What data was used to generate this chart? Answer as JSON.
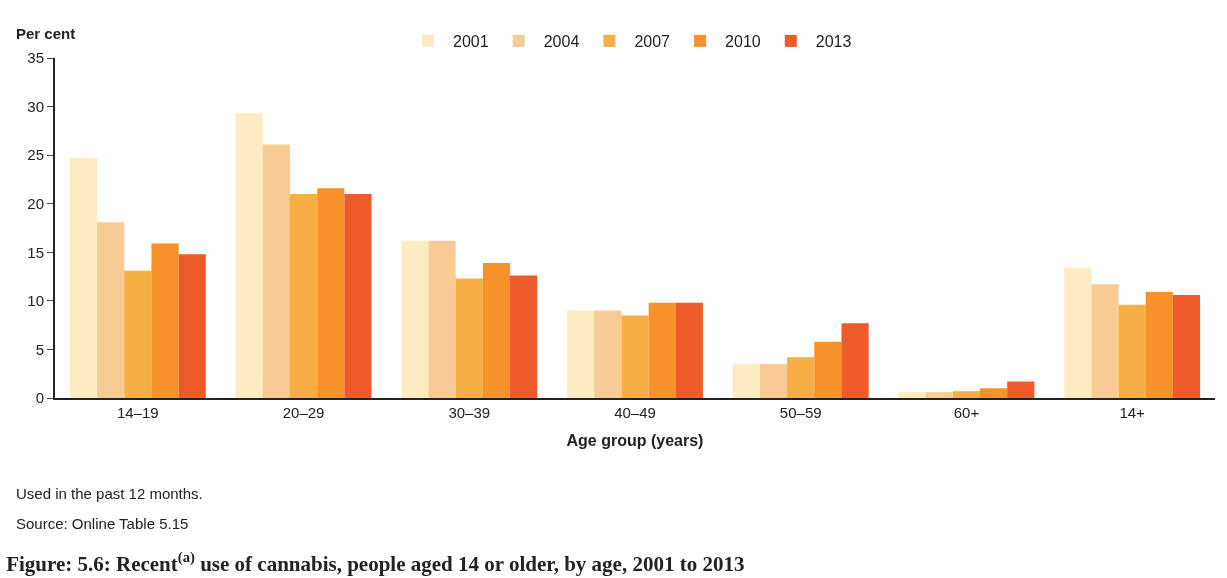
{
  "chart_data": {
    "type": "bar",
    "title": "Figure: 5.6: Recent$^{(a)}$ use of cannabis, people aged 14 or older, by age, 2001 to 2013",
    "xlabel": "Age group (years)",
    "ylabel": "Per cent",
    "categories": [
      "14–19",
      "20–29",
      "30–39",
      "40–49",
      "50–59",
      "60+",
      "14+"
    ],
    "series": [
      {
        "name": "2001",
        "color": "#fdebc2",
        "values": [
          24.7,
          29.3,
          16.2,
          9.0,
          3.5,
          0.6,
          13.4
        ]
      },
      {
        "name": "2004",
        "color": "#f7cb93",
        "values": [
          18.1,
          26.1,
          16.2,
          9.0,
          3.5,
          0.6,
          11.7
        ]
      },
      {
        "name": "2007",
        "color": "#f7ae45",
        "values": [
          13.1,
          21.0,
          12.3,
          8.5,
          4.2,
          0.7,
          9.6
        ]
      },
      {
        "name": "2010",
        "color": "#f7922a",
        "values": [
          15.9,
          21.6,
          13.9,
          9.8,
          5.8,
          1.0,
          10.9
        ]
      },
      {
        "name": "2013",
        "color": "#ef5a2a",
        "values": [
          14.8,
          21.0,
          12.6,
          9.8,
          7.7,
          1.7,
          10.6
        ]
      }
    ],
    "ylim": [
      0,
      35
    ],
    "yticks": [
      0,
      5,
      10,
      15,
      20,
      25,
      30,
      35
    ],
    "legend": "top",
    "annotations": [
      "Used in the past 12 months.",
      "Source: Online Table 5.15"
    ]
  }
}
